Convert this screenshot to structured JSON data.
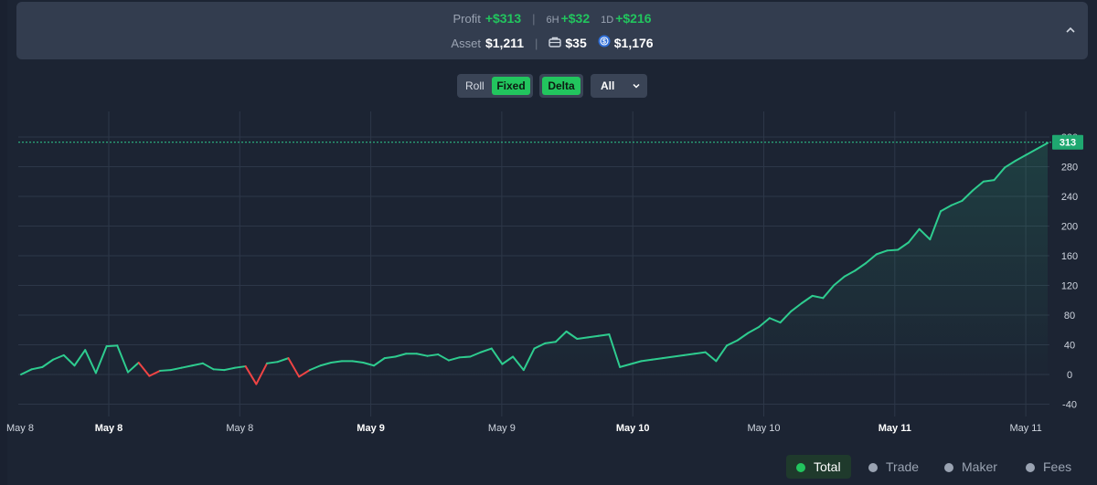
{
  "summary": {
    "profit_label": "Profit",
    "profit_value": "+$313",
    "h6_label": "6H",
    "h6_value": "+$32",
    "d1_label": "1D",
    "d1_value": "+$216",
    "asset_label": "Asset",
    "asset_value": "$1,211",
    "wallet_value": "$35",
    "coin_value": "$1,176",
    "separator": "|"
  },
  "controls": {
    "roll_label": "Roll",
    "fixed_label": "Fixed",
    "delta_label": "Delta",
    "range_value": "All"
  },
  "legend": [
    {
      "label": "Total",
      "active": true
    },
    {
      "label": "Trade",
      "active": false
    },
    {
      "label": "Maker",
      "active": false
    },
    {
      "label": "Fees",
      "active": false
    }
  ],
  "colors": {
    "positive": "#22c55e",
    "negative": "#ef4444",
    "line": "#2ecc8f"
  },
  "chart_data": {
    "type": "line",
    "ylim": [
      -60,
      320
    ],
    "y_ticks": [
      -40,
      0,
      40,
      80,
      120,
      160,
      200,
      240,
      280,
      320
    ],
    "x_tick_labels": [
      "May 8",
      "May 8",
      "May 8",
      "May 9",
      "May 9",
      "May 10",
      "May 10",
      "May 11",
      "May 11"
    ],
    "x_tick_bold": [
      false,
      true,
      false,
      true,
      false,
      true,
      false,
      true,
      false
    ],
    "current_value": 313,
    "current_label": "313",
    "series": [
      {
        "values": [
          0,
          7,
          10,
          20,
          26,
          12,
          33,
          2,
          38,
          39,
          3,
          16,
          -2,
          5,
          6,
          9,
          12,
          15,
          7,
          6,
          9,
          11,
          -13,
          15,
          17,
          22,
          -3,
          6,
          12,
          16,
          18,
          18,
          16,
          12,
          22,
          24,
          28,
          28,
          25,
          27,
          19,
          23,
          24,
          30,
          35,
          14,
          24,
          6,
          35,
          42,
          44,
          58,
          48,
          50,
          52,
          54,
          10,
          14,
          18,
          20,
          22,
          24,
          26,
          28,
          30,
          18,
          39,
          46,
          56,
          64,
          76,
          70,
          85,
          96,
          106,
          103,
          120,
          132,
          140,
          150,
          162,
          167,
          168,
          178,
          196,
          182,
          220,
          228,
          234,
          248,
          260,
          262,
          279,
          288,
          296,
          304,
          312
        ]
      }
    ]
  }
}
